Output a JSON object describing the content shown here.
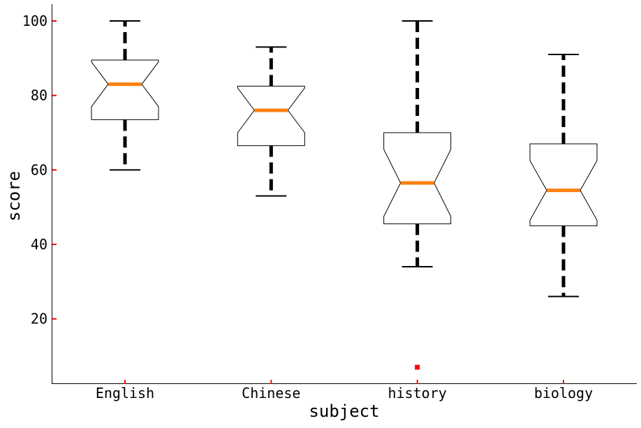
{
  "chart_data": {
    "type": "box",
    "xlabel": "subject",
    "ylabel": "score",
    "categories": [
      "English",
      "Chinese",
      "history",
      "biology"
    ],
    "boxes": [
      {
        "category": "English",
        "whisker_low": 60,
        "q1": 73.5,
        "median": 83,
        "q3": 89.5,
        "whisker_high": 100,
        "notch_low": 77,
        "notch_high": 89,
        "outliers": []
      },
      {
        "category": "Chinese",
        "whisker_low": 53,
        "q1": 66.5,
        "median": 76,
        "q3": 82.5,
        "whisker_high": 93,
        "notch_low": 70,
        "notch_high": 82,
        "outliers": []
      },
      {
        "category": "history",
        "whisker_low": 34,
        "q1": 45.5,
        "median": 56.5,
        "q3": 70,
        "whisker_high": 100,
        "notch_low": 47.5,
        "notch_high": 65.5,
        "outliers": [
          7
        ]
      },
      {
        "category": "biology",
        "whisker_low": 26,
        "q1": 45,
        "median": 54.5,
        "q3": 67,
        "whisker_high": 91,
        "notch_low": 46.5,
        "notch_high": 62.5,
        "outliers": []
      }
    ],
    "yticks": [
      20,
      40,
      60,
      80,
      100
    ],
    "ylim": [
      2.5,
      104.5
    ],
    "grid": false,
    "colors": {
      "box_edge": "#000000",
      "median": "#ff7f0e",
      "whisker": "#000000",
      "tick": "#ff0000",
      "outlier": "#ff0000",
      "axis": "#000000"
    }
  }
}
